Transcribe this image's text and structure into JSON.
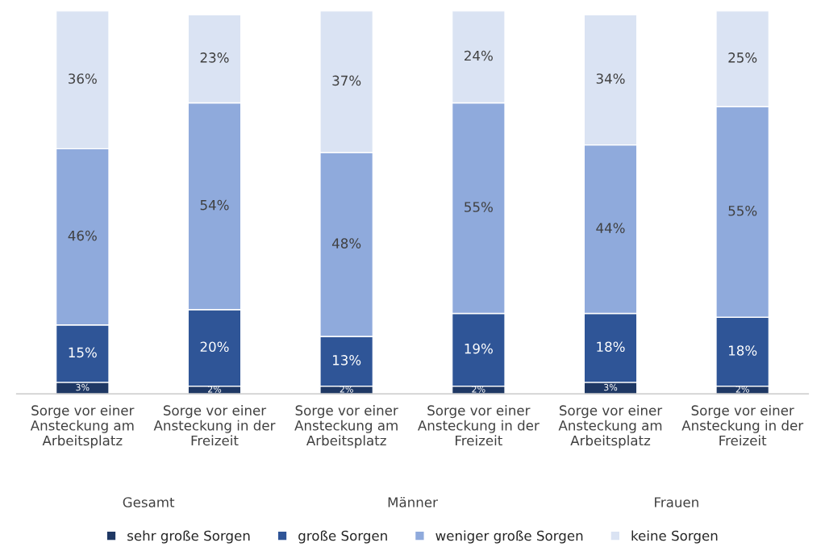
{
  "chart_data": {
    "type": "bar",
    "stacked": true,
    "categories": [
      "Sorge vor einer\nAnsteckung am\nArbeitsplatz",
      "Sorge vor einer\nAnsteckung in der\nFreizeit",
      "Sorge vor einer\nAnsteckung am\nArbeitsplatz",
      "Sorge vor einer\nAnsteckung in der\nFreizeit",
      "Sorge vor einer\nAnsteckung am\nArbeitsplatz",
      "Sorge vor einer\nAnsteckung in der\nFreizeit"
    ],
    "series": [
      {
        "name": "sehr große Sorgen",
        "color": "#1f3864",
        "values": [
          3,
          2,
          2,
          2,
          3,
          2
        ],
        "value_labels": [
          "3%",
          "2%",
          "2%",
          "2%",
          "3%",
          "2%"
        ]
      },
      {
        "name": "große Sorgen",
        "color": "#2f5597",
        "values": [
          15,
          20,
          13,
          19,
          18,
          18
        ],
        "value_labels": [
          "15%",
          "20%",
          "13%",
          "19%",
          "18%",
          "18%"
        ]
      },
      {
        "name": "weniger große Sorgen",
        "color": "#8faadc",
        "values": [
          46,
          54,
          48,
          55,
          44,
          55
        ],
        "value_labels": [
          "46%",
          "54%",
          "48%",
          "55%",
          "44%",
          "55%"
        ]
      },
      {
        "name": "keine Sorgen",
        "color": "#dae3f3",
        "values": [
          36,
          23,
          37,
          24,
          34,
          25
        ],
        "value_labels": [
          "36%",
          "23%",
          "37%",
          "24%",
          "34%",
          "25%"
        ]
      }
    ],
    "annotations": [
      "Gesamt",
      "Männer",
      "Frauen"
    ],
    "legend": "bottom",
    "grid": false
  }
}
